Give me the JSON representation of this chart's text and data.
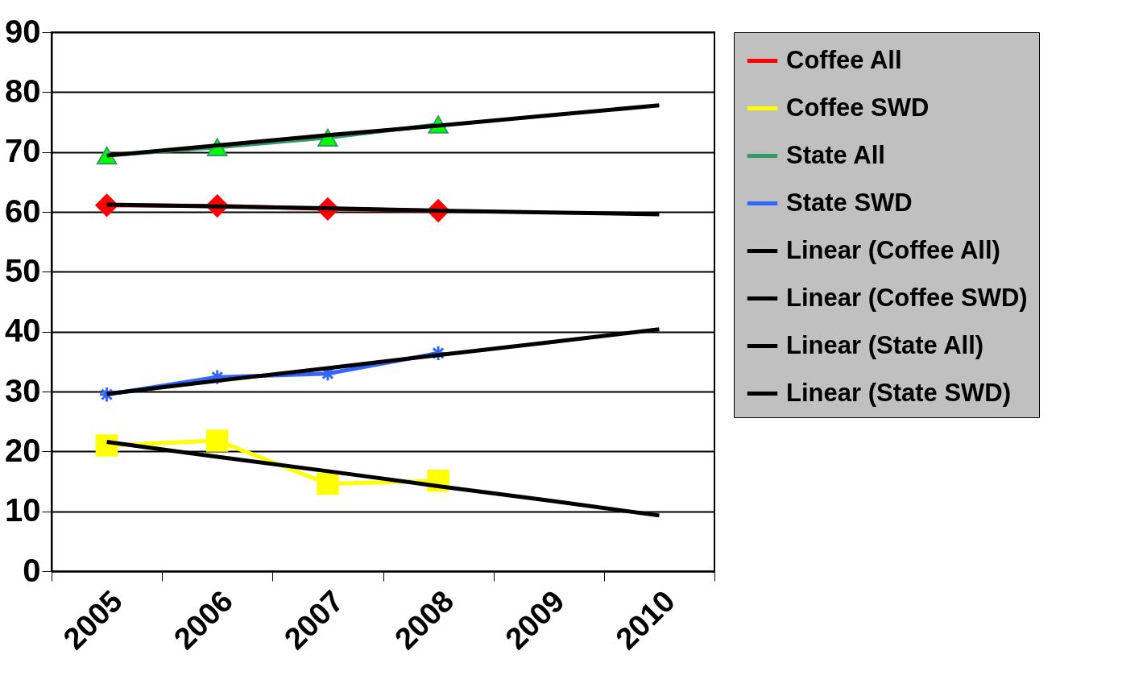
{
  "chart_data": {
    "type": "line",
    "categories": [
      "2005",
      "2006",
      "2007",
      "2008",
      "2009",
      "2010"
    ],
    "ylim": [
      0,
      90
    ],
    "yticks": [
      0,
      10,
      20,
      30,
      40,
      50,
      60,
      70,
      80,
      90
    ],
    "grid": "y",
    "legend": "right",
    "line_style": "solid",
    "series": [
      {
        "name": "Coffee All",
        "color": "#ff0000",
        "marker": "diamond",
        "values": [
          61.1,
          61.0,
          60.5,
          60.2,
          null,
          null
        ]
      },
      {
        "name": "Coffee SWD",
        "color": "#ffff00",
        "marker": "square",
        "values": [
          21.0,
          21.8,
          14.6,
          15.1,
          null,
          null
        ]
      },
      {
        "name": "State All",
        "color": "#339966",
        "marker": "triangle",
        "values": [
          69.4,
          70.8,
          72.4,
          74.6,
          null,
          null
        ]
      },
      {
        "name": "State SWD",
        "color": "#3366ff",
        "marker": "cross",
        "values": [
          29.5,
          32.4,
          33.0,
          36.4,
          null,
          null
        ]
      },
      {
        "name": "Linear (Coffee All)",
        "color": "#000000",
        "marker": "none",
        "values": [
          61.2,
          60.9,
          60.6,
          60.2,
          59.9,
          59.6
        ]
      },
      {
        "name": "Linear (Coffee SWD)",
        "color": "#000000",
        "marker": "none",
        "values": [
          21.6,
          19.1,
          16.7,
          14.2,
          11.8,
          9.3
        ]
      },
      {
        "name": "Linear (State All)",
        "color": "#000000",
        "marker": "none",
        "values": [
          69.4,
          71.1,
          72.8,
          74.4,
          76.1,
          77.8
        ]
      },
      {
        "name": "Linear (State SWD)",
        "color": "#000000",
        "marker": "none",
        "values": [
          29.6,
          31.8,
          33.9,
          36.1,
          38.2,
          40.4
        ]
      }
    ]
  }
}
